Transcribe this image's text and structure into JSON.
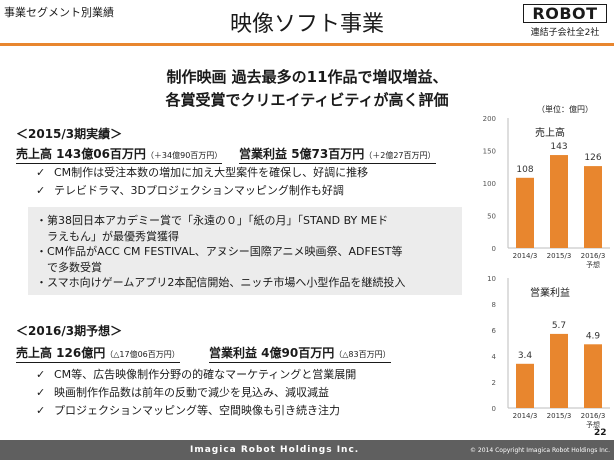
{
  "header": {
    "segment_label": "事業セグメント別業績",
    "page_title": "映像ソフト事業",
    "logo_text": "ROBOT",
    "logo_sub": "連結子会社全2社"
  },
  "headline": {
    "line1": "制作映画 過去最多の11作品で増収増益、",
    "line2": "各賞受賞でクリエイティビティが高く評価"
  },
  "actual": {
    "period": "＜2015/3期実績＞",
    "sales_main": "売上高 143億06百万円",
    "sales_note": "（＋34億90百万円）",
    "profit_main": "営業利益 5億73百万円",
    "profit_note": "（＋2億27百万円）",
    "bullets": [
      "CM制作は受注本数の増加に加え大型案件を確保し、好調に推移",
      "テレビドラマ、3Dプロジェクションマッピング制作も好調"
    ],
    "box_items": [
      "・第38回日本アカデミー賞で「永遠の０」「紙の月」「STAND BY MEド",
      "　ラえもん」が最優秀賞獲得",
      "・CM作品がACC CM FESTIVAL、アヌシー国際アニメ映画祭、ADFEST等",
      "　で多数受賞",
      "・スマホ向けゲームアプリ2本配信開始、ニッチ市場へ小型作品を継続投入"
    ]
  },
  "forecast": {
    "period": "＜2016/3期予想＞",
    "sales_main": "売上高 126億円",
    "sales_note": "（△17億06百万円）",
    "profit_main": "営業利益 4億90百万円",
    "profit_note": "（△83百万円）",
    "bullets": [
      "CM等、広告映像制作分野の的確なマーケティングと営業展開",
      "映画制作作品数は前年の反動で減少を見込み、減収減益",
      "プロジェクションマッピング等、空間映像も引き続き注力"
    ]
  },
  "unit_label": "（単位：億円）",
  "chart_data": [
    {
      "type": "bar",
      "title": "売上高",
      "categories": [
        "2014/3",
        "2015/3",
        "2016/3\n予想"
      ],
      "values": [
        108,
        143,
        126
      ],
      "value_labels": [
        "108",
        "143",
        "126"
      ],
      "ylim": [
        0,
        200
      ],
      "yticks": [
        0,
        50,
        100,
        150,
        200
      ],
      "grid": false,
      "colors": [
        "#e8862e"
      ]
    },
    {
      "type": "bar",
      "title": "営業利益",
      "categories": [
        "2014/3",
        "2015/3",
        "2016/3\n予想"
      ],
      "values": [
        3.4,
        5.7,
        4.9
      ],
      "value_labels": [
        "3.4",
        "5.7",
        "4.9"
      ],
      "ylim": [
        0,
        10
      ],
      "yticks": [
        0,
        2,
        4,
        6,
        8,
        10
      ],
      "grid": false,
      "colors": [
        "#e8862e"
      ]
    }
  ],
  "footer": {
    "brand": "Imagica Robot Holdings Inc.",
    "copyright": "© 2014 Copyright Imagica Robot Holdings Inc.",
    "page_number": "22"
  }
}
